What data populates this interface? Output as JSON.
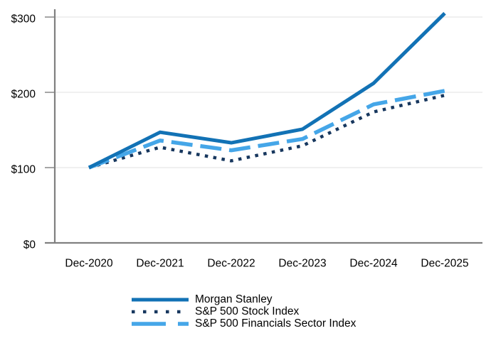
{
  "chart_data": {
    "type": "line",
    "title": "",
    "xlabel": "",
    "ylabel": "",
    "categories": [
      "Dec-2020",
      "Dec-2021",
      "Dec-2022",
      "Dec-2023",
      "Dec-2024",
      "Dec-2025"
    ],
    "series": [
      {
        "name": "Morgan Stanley",
        "style": "solid",
        "color": "#1272B5",
        "values": [
          100,
          147,
          133,
          151,
          212,
          305
        ]
      },
      {
        "name": "S&P 500 Stock Index",
        "style": "dotted",
        "color": "#17375E",
        "values": [
          100,
          127,
          109,
          129,
          174,
          196
        ]
      },
      {
        "name": "S&P 500 Financials Sector Index",
        "style": "dashed",
        "color": "#45A6E8",
        "values": [
          100,
          136,
          123,
          138,
          184,
          202
        ]
      }
    ],
    "y_ticks": [
      {
        "label": "$0",
        "value": 0
      },
      {
        "label": "$100",
        "value": 100
      },
      {
        "label": "$200",
        "value": 200
      },
      {
        "label": "$300",
        "value": 300
      }
    ],
    "ylim": [
      0,
      300
    ],
    "grid": "horizontal-light",
    "legend_position": "bottom-center"
  },
  "colors": {
    "axis": "#808080",
    "gridline": "#E0E0E0",
    "text": "#000000",
    "background": "#FFFFFF"
  }
}
